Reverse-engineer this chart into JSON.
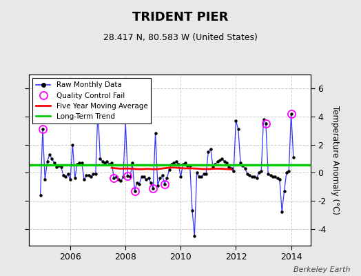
{
  "title": "TRIDENT PIER",
  "subtitle": "28.417 N, 80.583 W (United States)",
  "ylabel": "Temperature Anomaly (°C)",
  "watermark": "Berkeley Earth",
  "bg_color": "#e8e8e8",
  "plot_bg_color": "#ffffff",
  "ylim": [
    -5.2,
    7.0
  ],
  "xlim": [
    2004.5,
    2014.7
  ],
  "xticks": [
    2006,
    2008,
    2010,
    2012,
    2014
  ],
  "yticks": [
    -4,
    -2,
    0,
    2,
    4,
    6
  ],
  "long_term_trend_y": 0.55,
  "long_term_trend_slope": 0.0,
  "raw_data": [
    [
      2004.917,
      -1.6
    ],
    [
      2005.0,
      3.1
    ],
    [
      2005.083,
      -0.5
    ],
    [
      2005.167,
      0.8
    ],
    [
      2005.25,
      1.3
    ],
    [
      2005.333,
      1.0
    ],
    [
      2005.417,
      0.7
    ],
    [
      2005.5,
      0.4
    ],
    [
      2005.583,
      0.5
    ],
    [
      2005.667,
      0.4
    ],
    [
      2005.75,
      -0.2
    ],
    [
      2005.833,
      -0.3
    ],
    [
      2005.917,
      -0.1
    ],
    [
      2006.0,
      -0.5
    ],
    [
      2006.083,
      2.0
    ],
    [
      2006.167,
      -0.4
    ],
    [
      2006.25,
      0.6
    ],
    [
      2006.333,
      0.7
    ],
    [
      2006.417,
      0.7
    ],
    [
      2006.5,
      -0.5
    ],
    [
      2006.583,
      -0.2
    ],
    [
      2006.667,
      -0.2
    ],
    [
      2006.75,
      -0.3
    ],
    [
      2006.833,
      -0.1
    ],
    [
      2006.917,
      -0.1
    ],
    [
      2007.0,
      4.5
    ],
    [
      2007.083,
      1.0
    ],
    [
      2007.167,
      0.8
    ],
    [
      2007.25,
      0.7
    ],
    [
      2007.333,
      0.8
    ],
    [
      2007.417,
      0.6
    ],
    [
      2007.5,
      0.7
    ],
    [
      2007.583,
      -0.4
    ],
    [
      2007.667,
      -0.3
    ],
    [
      2007.75,
      -0.5
    ],
    [
      2007.833,
      -0.6
    ],
    [
      2007.917,
      -0.3
    ],
    [
      2008.0,
      3.6
    ],
    [
      2008.083,
      -0.25
    ],
    [
      2008.167,
      -0.3
    ],
    [
      2008.25,
      0.7
    ],
    [
      2008.333,
      -1.3
    ],
    [
      2008.417,
      -0.7
    ],
    [
      2008.5,
      -0.8
    ],
    [
      2008.583,
      -0.3
    ],
    [
      2008.667,
      -0.3
    ],
    [
      2008.75,
      -0.5
    ],
    [
      2008.833,
      -0.4
    ],
    [
      2008.917,
      -0.7
    ],
    [
      2009.0,
      -1.1
    ],
    [
      2009.083,
      2.8
    ],
    [
      2009.167,
      -0.9
    ],
    [
      2009.25,
      -0.4
    ],
    [
      2009.333,
      -0.2
    ],
    [
      2009.417,
      -0.8
    ],
    [
      2009.5,
      -0.4
    ],
    [
      2009.583,
      0.2
    ],
    [
      2009.667,
      0.6
    ],
    [
      2009.75,
      0.7
    ],
    [
      2009.833,
      0.8
    ],
    [
      2009.917,
      0.6
    ],
    [
      2010.0,
      -0.3
    ],
    [
      2010.083,
      0.6
    ],
    [
      2010.167,
      0.7
    ],
    [
      2010.25,
      0.5
    ],
    [
      2010.333,
      0.5
    ],
    [
      2010.417,
      -2.7
    ],
    [
      2010.5,
      -4.5
    ],
    [
      2010.583,
      0.0
    ],
    [
      2010.667,
      -0.3
    ],
    [
      2010.75,
      -0.3
    ],
    [
      2010.833,
      -0.1
    ],
    [
      2010.917,
      -0.1
    ],
    [
      2011.0,
      1.5
    ],
    [
      2011.083,
      1.7
    ],
    [
      2011.167,
      0.4
    ],
    [
      2011.25,
      0.6
    ],
    [
      2011.333,
      0.8
    ],
    [
      2011.417,
      0.9
    ],
    [
      2011.5,
      1.0
    ],
    [
      2011.583,
      0.8
    ],
    [
      2011.667,
      0.7
    ],
    [
      2011.75,
      0.4
    ],
    [
      2011.833,
      0.3
    ],
    [
      2011.917,
      0.1
    ],
    [
      2012.0,
      3.7
    ],
    [
      2012.083,
      3.1
    ],
    [
      2012.167,
      0.7
    ],
    [
      2012.25,
      0.5
    ],
    [
      2012.333,
      0.3
    ],
    [
      2012.417,
      -0.1
    ],
    [
      2012.5,
      -0.2
    ],
    [
      2012.583,
      -0.3
    ],
    [
      2012.667,
      -0.3
    ],
    [
      2012.75,
      -0.4
    ],
    [
      2012.833,
      0.0
    ],
    [
      2012.917,
      0.1
    ],
    [
      2013.0,
      3.8
    ],
    [
      2013.083,
      3.5
    ],
    [
      2013.167,
      -0.1
    ],
    [
      2013.25,
      -0.2
    ],
    [
      2013.333,
      -0.3
    ],
    [
      2013.417,
      -0.3
    ],
    [
      2013.5,
      -0.4
    ],
    [
      2013.583,
      -0.5
    ],
    [
      2013.667,
      -2.8
    ],
    [
      2013.75,
      -1.3
    ],
    [
      2013.833,
      0.0
    ],
    [
      2013.917,
      0.1
    ],
    [
      2014.0,
      4.2
    ],
    [
      2014.083,
      1.1
    ]
  ],
  "qc_fail_points": [
    [
      2005.0,
      3.1
    ],
    [
      2007.583,
      -0.4
    ],
    [
      2008.083,
      -0.25
    ],
    [
      2008.333,
      -1.3
    ],
    [
      2009.0,
      -1.1
    ],
    [
      2009.417,
      -0.8
    ],
    [
      2013.083,
      3.5
    ],
    [
      2014.0,
      4.2
    ]
  ],
  "moving_avg": [
    [
      2007.5,
      0.35
    ],
    [
      2007.583,
      0.33
    ],
    [
      2007.667,
      0.31
    ],
    [
      2007.75,
      0.3
    ],
    [
      2007.833,
      0.29
    ],
    [
      2007.917,
      0.29
    ],
    [
      2008.0,
      0.3
    ],
    [
      2008.083,
      0.3
    ],
    [
      2008.167,
      0.29
    ],
    [
      2008.25,
      0.28
    ],
    [
      2008.333,
      0.27
    ],
    [
      2008.417,
      0.26
    ],
    [
      2008.5,
      0.25
    ],
    [
      2008.583,
      0.25
    ],
    [
      2008.667,
      0.26
    ],
    [
      2008.75,
      0.27
    ],
    [
      2008.833,
      0.27
    ],
    [
      2008.917,
      0.26
    ],
    [
      2009.0,
      0.25
    ],
    [
      2009.083,
      0.25
    ],
    [
      2009.167,
      0.26
    ],
    [
      2009.25,
      0.28
    ],
    [
      2009.333,
      0.3
    ],
    [
      2009.417,
      0.32
    ],
    [
      2009.5,
      0.34
    ],
    [
      2009.583,
      0.36
    ],
    [
      2009.667,
      0.37
    ],
    [
      2009.75,
      0.37
    ],
    [
      2009.833,
      0.36
    ],
    [
      2009.917,
      0.35
    ],
    [
      2010.0,
      0.33
    ],
    [
      2010.083,
      0.32
    ],
    [
      2010.167,
      0.31
    ],
    [
      2010.25,
      0.31
    ],
    [
      2010.333,
      0.31
    ],
    [
      2010.417,
      0.31
    ],
    [
      2010.5,
      0.3
    ],
    [
      2010.583,
      0.29
    ],
    [
      2010.667,
      0.28
    ],
    [
      2010.75,
      0.27
    ],
    [
      2010.833,
      0.26
    ],
    [
      2010.917,
      0.26
    ],
    [
      2011.0,
      0.26
    ],
    [
      2011.083,
      0.27
    ],
    [
      2011.167,
      0.28
    ],
    [
      2011.25,
      0.29
    ],
    [
      2011.333,
      0.29
    ],
    [
      2011.5,
      0.28
    ],
    [
      2011.583,
      0.27
    ],
    [
      2011.667,
      0.26
    ],
    [
      2011.75,
      0.25
    ],
    [
      2011.833,
      0.24
    ]
  ],
  "line_color": "#3333ff",
  "marker_color": "#000000",
  "qc_color": "#ff00ff",
  "ma_color": "#ff0000",
  "trend_color": "#00cc00",
  "grid_color": "#cccccc",
  "grid_style": "--"
}
